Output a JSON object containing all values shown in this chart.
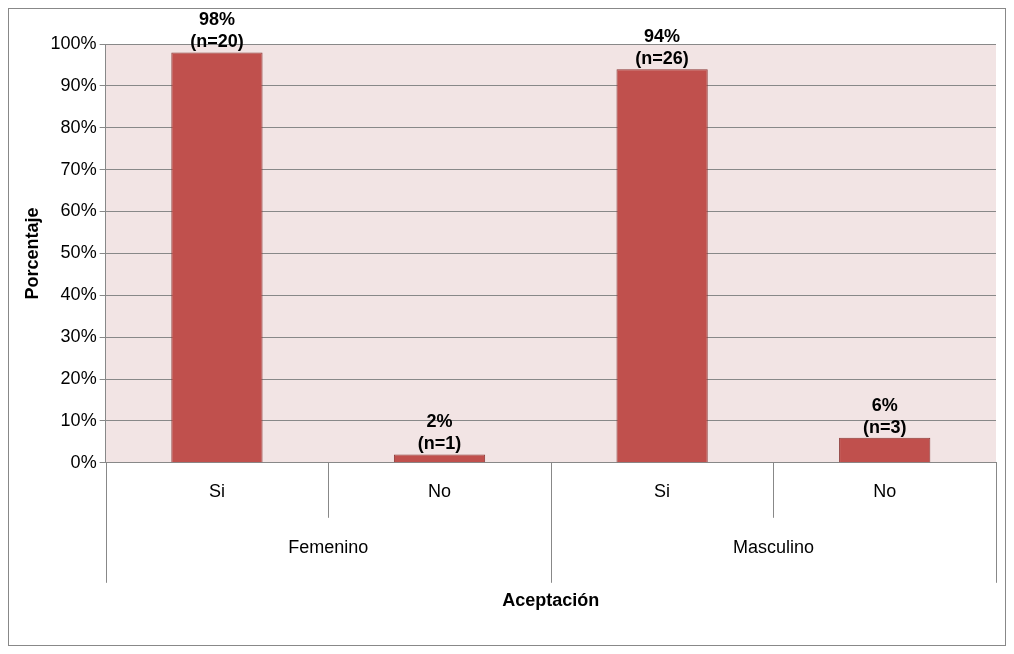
{
  "chart_data": {
    "type": "bar",
    "xlabel": "Aceptación",
    "ylabel": "Porcentaje",
    "categories": [
      "Si",
      "No",
      "Si",
      "No"
    ],
    "values": [
      98,
      2,
      94,
      6
    ],
    "value_labels": [
      "98%\n(n=20)",
      "2%\n(n=1)",
      "94%\n(n=26)",
      "6%\n(n=3)"
    ],
    "color": "#c0504d",
    "annotations": [
      "Femenino",
      "Masculino"
    ],
    "ylim": [
      0,
      100
    ],
    "yticks": [
      {
        "value": 0,
        "label": "0%"
      },
      {
        "value": 10,
        "label": "10%"
      },
      {
        "value": 20,
        "label": "20%"
      },
      {
        "value": 30,
        "label": "30%"
      },
      {
        "value": 40,
        "label": "40%"
      },
      {
        "value": 50,
        "label": "50%"
      },
      {
        "value": 60,
        "label": "60%"
      },
      {
        "value": 70,
        "label": "70%"
      },
      {
        "value": 80,
        "label": "80%"
      },
      {
        "value": 90,
        "label": "90%"
      },
      {
        "value": 100,
        "label": "100%"
      }
    ],
    "grid": "y",
    "legend": false
  }
}
